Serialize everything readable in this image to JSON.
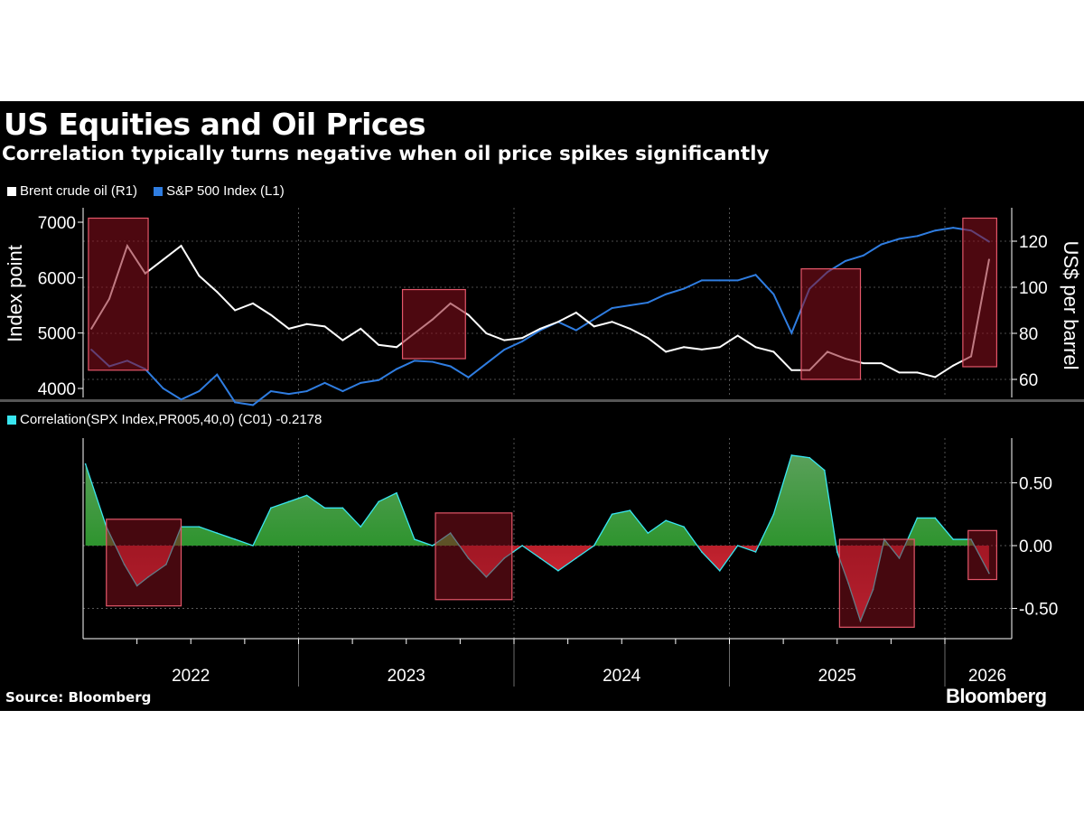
{
  "title": "US Equities and Oil Prices",
  "subtitle": "Correlation typically turns negative when oil price spikes significantly",
  "source": "Source: Bloomberg",
  "brand": "Bloomberg",
  "chart_data": [
    {
      "type": "line",
      "legend": [
        {
          "label": "Brent crude oil (R1)",
          "color": "#ffffff"
        },
        {
          "label": "S&P 500 Index (L1)",
          "color": "#2f7de1"
        }
      ],
      "ylabel_left": "Index point",
      "ylabel_right": "US$ per barrel",
      "y_left_ticks": [
        "7000",
        "6000",
        "5000",
        "4000"
      ],
      "y_left_range": [
        3600,
        7100
      ],
      "y_right_ticks": [
        "120",
        "100",
        "80",
        "60"
      ],
      "y_right_range": [
        56,
        134
      ],
      "x_range": [
        "2022-01-01",
        "2026-04-01"
      ],
      "grid": true,
      "dates": [
        "2022-01-15",
        "2022-02-15",
        "2022-03-15",
        "2022-04-15",
        "2022-05-15",
        "2022-06-15",
        "2022-07-15",
        "2022-08-15",
        "2022-09-15",
        "2022-10-15",
        "2022-11-15",
        "2022-12-15",
        "2023-01-15",
        "2023-02-15",
        "2023-03-15",
        "2023-04-15",
        "2023-05-15",
        "2023-06-15",
        "2023-07-15",
        "2023-08-15",
        "2023-09-15",
        "2023-10-15",
        "2023-11-15",
        "2023-12-15",
        "2024-01-15",
        "2024-02-15",
        "2024-03-15",
        "2024-04-15",
        "2024-05-15",
        "2024-06-15",
        "2024-07-15",
        "2024-08-15",
        "2024-09-15",
        "2024-10-15",
        "2024-11-15",
        "2024-12-15",
        "2025-01-15",
        "2025-02-15",
        "2025-03-15",
        "2025-04-15",
        "2025-05-15",
        "2025-06-15",
        "2025-07-15",
        "2025-08-15",
        "2025-09-15",
        "2025-10-15",
        "2025-11-15",
        "2025-12-15",
        "2026-01-15",
        "2026-02-15",
        "2026-03-15"
      ],
      "series": [
        {
          "name": "S&P 500 Index (L1)",
          "axis": "left",
          "color": "#2f7de1",
          "values": [
            4700,
            4400,
            4500,
            4350,
            4000,
            3800,
            3950,
            4250,
            3750,
            3700,
            3950,
            3900,
            3950,
            4100,
            3950,
            4100,
            4150,
            4350,
            4500,
            4480,
            4400,
            4200,
            4450,
            4700,
            4850,
            5050,
            5200,
            5050,
            5250,
            5450,
            5500,
            5550,
            5700,
            5800,
            5950,
            5950,
            5950,
            6050,
            5700,
            5000,
            5800,
            6100,
            6300,
            6400,
            6600,
            6700,
            6750,
            6850,
            6900,
            6850,
            6650
          ]
        },
        {
          "name": "Brent crude oil (R1)",
          "axis": "right",
          "color": "#ffffff",
          "values": [
            82,
            95,
            118,
            106,
            112,
            118,
            105,
            98,
            90,
            93,
            88,
            82,
            84,
            83,
            77,
            82,
            75,
            74,
            80,
            86,
            93,
            88,
            80,
            77,
            78,
            82,
            85,
            89,
            83,
            85,
            82,
            78,
            72,
            74,
            73,
            74,
            79,
            74,
            72,
            64,
            64,
            72,
            69,
            67,
            67,
            63,
            63,
            61,
            66,
            70,
            112
          ]
        }
      ],
      "highlights": [
        {
          "start": "2022-01-10",
          "end": "2022-04-20",
          "y_top": 130,
          "y_bottom": 64
        },
        {
          "start": "2023-06-25",
          "end": "2023-10-10",
          "y_top": 99,
          "y_bottom": 69
        },
        {
          "start": "2025-05-01",
          "end": "2025-08-10",
          "y_top": 108,
          "y_bottom": 60
        },
        {
          "start": "2026-02-01",
          "end": "2026-03-28",
          "y_top": 130,
          "y_bottom": 65.5
        }
      ]
    },
    {
      "type": "area",
      "legend": [
        {
          "label": "Correlation(SPX Index,PR005,40,0) (C01) -0.2178",
          "color": "#39e6f0"
        }
      ],
      "y_ticks": [
        "0.50",
        "0.00",
        "-0.50"
      ],
      "y_range": [
        -0.74,
        0.86
      ],
      "x_ticks": [
        "2022",
        "2023",
        "2024",
        "2025",
        "2026"
      ],
      "grid": true,
      "dates": [
        "2022-01-05",
        "2022-02-10",
        "2022-03-10",
        "2022-04-01",
        "2022-04-20",
        "2022-05-20",
        "2022-06-15",
        "2022-07-15",
        "2022-08-15",
        "2022-09-15",
        "2022-10-15",
        "2022-11-15",
        "2022-12-15",
        "2023-01-15",
        "2023-02-15",
        "2023-03-15",
        "2023-04-15",
        "2023-05-15",
        "2023-06-15",
        "2023-07-15",
        "2023-08-15",
        "2023-09-15",
        "2023-10-15",
        "2023-11-15",
        "2023-12-15",
        "2024-01-15",
        "2024-02-15",
        "2024-03-15",
        "2024-04-15",
        "2024-05-15",
        "2024-06-15",
        "2024-07-15",
        "2024-08-15",
        "2024-09-15",
        "2024-10-15",
        "2024-11-15",
        "2024-12-15",
        "2025-01-15",
        "2025-02-15",
        "2025-03-15",
        "2025-04-15",
        "2025-05-15",
        "2025-06-10",
        "2025-07-01",
        "2025-07-20",
        "2025-08-10",
        "2025-09-01",
        "2025-09-20",
        "2025-10-15",
        "2025-11-15",
        "2025-12-15",
        "2026-01-15",
        "2026-02-15",
        "2026-03-15"
      ],
      "values": [
        0.65,
        0.15,
        -0.15,
        -0.32,
        -0.25,
        -0.15,
        0.15,
        0.15,
        0.1,
        0.05,
        0.0,
        0.3,
        0.35,
        0.4,
        0.3,
        0.3,
        0.15,
        0.35,
        0.42,
        0.05,
        0.0,
        0.1,
        -0.1,
        -0.25,
        -0.1,
        0.0,
        -0.1,
        -0.2,
        -0.1,
        0.0,
        0.25,
        0.28,
        0.1,
        0.2,
        0.15,
        -0.05,
        -0.2,
        0.0,
        -0.05,
        0.25,
        0.72,
        0.7,
        0.6,
        -0.05,
        -0.3,
        -0.6,
        -0.35,
        0.05,
        -0.1,
        0.22,
        0.22,
        0.05,
        0.05,
        -0.22
      ],
      "highlights": [
        {
          "start": "2022-02-10",
          "end": "2022-06-15",
          "y_top": 0.21,
          "y_bottom": -0.48
        },
        {
          "start": "2023-08-20",
          "end": "2023-12-28",
          "y_top": 0.26,
          "y_bottom": -0.43
        },
        {
          "start": "2025-07-05",
          "end": "2025-11-10",
          "y_top": 0.05,
          "y_bottom": -0.65
        },
        {
          "start": "2026-02-10",
          "end": "2026-03-28",
          "y_top": 0.12,
          "y_bottom": -0.27
        }
      ]
    }
  ]
}
